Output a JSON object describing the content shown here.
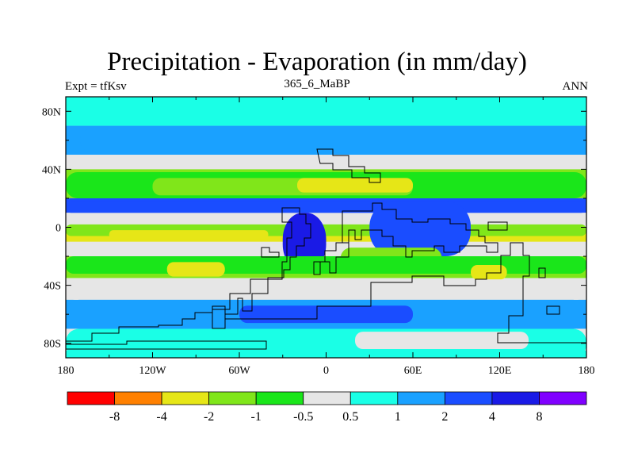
{
  "header": {
    "title": "Precipitation - Evaporation (in mm/day)",
    "subtitle": "365_6_MaBP",
    "left_string": "Expt = tfKsv",
    "right_string": "ANN"
  },
  "chart_data": {
    "type": "heatmap",
    "title": "Precipitation - Evaporation (in mm/day)",
    "subtitle": "365_6_MaBP",
    "x_ticks": [
      "180",
      "120W",
      "60W",
      "0",
      "60E",
      "120E",
      "180"
    ],
    "x_tick_values": [
      -180,
      -120,
      -60,
      0,
      60,
      120,
      180
    ],
    "y_ticks": [
      "80N",
      "40N",
      "0",
      "40S",
      "80S"
    ],
    "y_tick_values": [
      80,
      40,
      0,
      -40,
      -80
    ],
    "xlim": [
      -180,
      180
    ],
    "ylim": [
      -90,
      90
    ],
    "colorbar": {
      "labels": [
        "-8",
        "-4",
        "-2",
        "-1",
        "-0.5",
        "0.5",
        "1",
        "2",
        "4",
        "8"
      ],
      "colors": [
        "#ff0000",
        "#ff8000",
        "#e6e617",
        "#80e61a",
        "#1ae61a",
        "#e6e6e6",
        "#1affe6",
        "#1aa1ff",
        "#1a4dff",
        "#1a1ae6",
        "#8000ff"
      ]
    },
    "latitude_bands": [
      {
        "lat_range": [
          90,
          70
        ],
        "category": "0.5 to 1"
      },
      {
        "lat_range": [
          70,
          50
        ],
        "category": "1 to 2"
      },
      {
        "lat_range": [
          50,
          40
        ],
        "category": "-0.5 to 0.5"
      },
      {
        "lat_range": [
          40,
          20
        ],
        "category": "-2 to -1"
      },
      {
        "lat_range": [
          20,
          10
        ],
        "category": "2 to 4"
      },
      {
        "lat_range": [
          10,
          0
        ],
        "category": "-0.5 to 0.5"
      },
      {
        "lat_range": [
          0,
          -10
        ],
        "category": "-4 to -2"
      },
      {
        "lat_range": [
          -10,
          -20
        ],
        "category": "-0.5 to 0.5"
      },
      {
        "lat_range": [
          -20,
          -35
        ],
        "category": "-2 to -1"
      },
      {
        "lat_range": [
          -35,
          -50
        ],
        "category": "-0.5 to 0.5"
      },
      {
        "lat_range": [
          -50,
          -70
        ],
        "category": "1 to 2"
      },
      {
        "lat_range": [
          -70,
          -85
        ],
        "category": "-0.5 to 0.5"
      },
      {
        "lat_range": [
          -85,
          -90
        ],
        "category": "0.5 to 1"
      }
    ],
    "regions": [
      {
        "lon": [
          -170,
          180
        ],
        "lat": [
          88,
          72
        ],
        "category": "0.5 to 1"
      },
      {
        "lon": [
          -170,
          180
        ],
        "lat": [
          68,
          52
        ],
        "category": "1 to 2"
      },
      {
        "lon": [
          -180,
          180
        ],
        "lat": [
          50,
          42
        ],
        "category": "-0.5 to 0.5"
      },
      {
        "lon": [
          -180,
          180
        ],
        "lat": [
          38,
          20
        ],
        "category": "-1 to -0.5"
      },
      {
        "lon": [
          -120,
          60
        ],
        "lat": [
          34,
          22
        ],
        "category": "-2 to -1"
      },
      {
        "lon": [
          -20,
          60
        ],
        "lat": [
          34,
          24
        ],
        "category": "-4 to -2"
      },
      {
        "lon": [
          -180,
          180
        ],
        "lat": [
          18,
          10
        ],
        "category": "2 to 4"
      },
      {
        "lon": [
          -180,
          180
        ],
        "lat": [
          8,
          2
        ],
        "category": "-0.5 to 0.5"
      },
      {
        "lon": [
          -180,
          180
        ],
        "lat": [
          2,
          -6
        ],
        "category": "-2 to -1"
      },
      {
        "lon": [
          -150,
          -40
        ],
        "lat": [
          -2,
          -8
        ],
        "category": "-4 to -2"
      },
      {
        "lon": [
          -30,
          0
        ],
        "lat": [
          10,
          -30
        ],
        "category": "4 to 8"
      },
      {
        "lon": [
          30,
          100
        ],
        "lat": [
          18,
          -20
        ],
        "category": "2 to 4"
      },
      {
        "lon": [
          10,
          80
        ],
        "lat": [
          -14,
          -30
        ],
        "category": "-2 to -1"
      },
      {
        "lon": [
          -180,
          180
        ],
        "lat": [
          -20,
          -32
        ],
        "category": "-1 to -0.5"
      },
      {
        "lon": [
          -110,
          -70
        ],
        "lat": [
          -24,
          -34
        ],
        "category": "-4 to -2"
      },
      {
        "lon": [
          100,
          125
        ],
        "lat": [
          -26,
          -36
        ],
        "category": "-4 to -2"
      },
      {
        "lon": [
          -180,
          180
        ],
        "lat": [
          -36,
          -50
        ],
        "category": "-0.5 to 0.5"
      },
      {
        "lon": [
          -180,
          180
        ],
        "lat": [
          -50,
          -70
        ],
        "category": "1 to 2"
      },
      {
        "lon": [
          -60,
          60
        ],
        "lat": [
          -54,
          -66
        ],
        "category": "2 to 4"
      },
      {
        "lon": [
          -180,
          180
        ],
        "lat": [
          -70,
          -90
        ],
        "category": "0.5 to 1"
      },
      {
        "lon": [
          20,
          140
        ],
        "lat": [
          -72,
          -84
        ],
        "category": "-0.5 to 0.5"
      }
    ]
  }
}
